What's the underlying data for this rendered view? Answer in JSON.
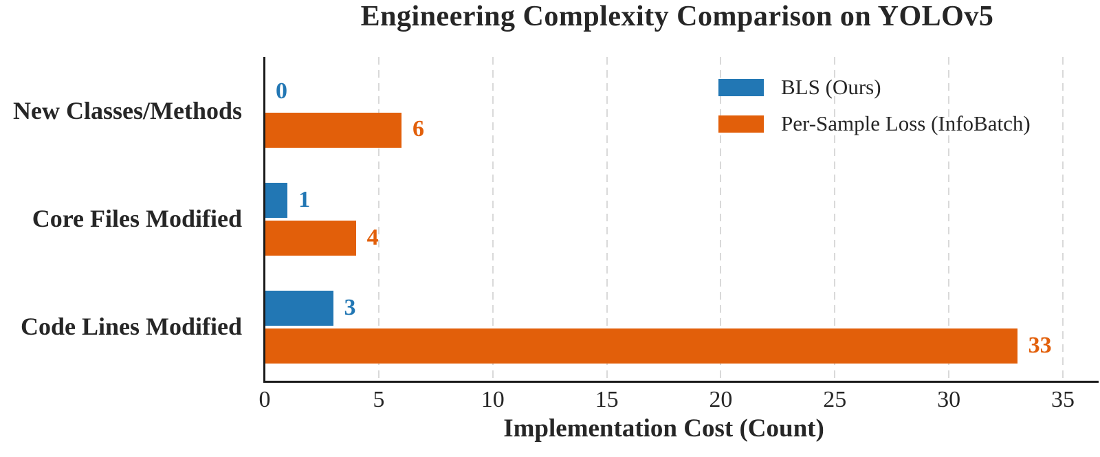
{
  "chart_data": {
    "type": "bar",
    "orientation": "horizontal",
    "title": "Engineering Complexity Comparison on YOLOv5",
    "xlabel": "Implementation Cost (Count)",
    "categories": [
      "New Classes/Methods",
      "Core Files Modified",
      "Code Lines Modified"
    ],
    "series": [
      {
        "name": "BLS (Ours)",
        "color": "#2277b4",
        "values": [
          0,
          1,
          3
        ]
      },
      {
        "name": "Per-Sample Loss (InfoBatch)",
        "color": "#e25f0a",
        "values": [
          6,
          4,
          33
        ]
      }
    ],
    "value_labels": [
      [
        "0",
        "1",
        "3"
      ],
      [
        "6",
        "4",
        "33"
      ]
    ],
    "xticks": [
      0,
      5,
      10,
      15,
      20,
      25,
      30,
      35
    ],
    "xlim": [
      0,
      36.6
    ],
    "grid": "vertical-dashed",
    "legend_position": "upper-right",
    "colors": {
      "text": "#262626",
      "grid": "#d9d9d9",
      "spine": "#1a1a1a",
      "background": "#ffffff"
    }
  }
}
